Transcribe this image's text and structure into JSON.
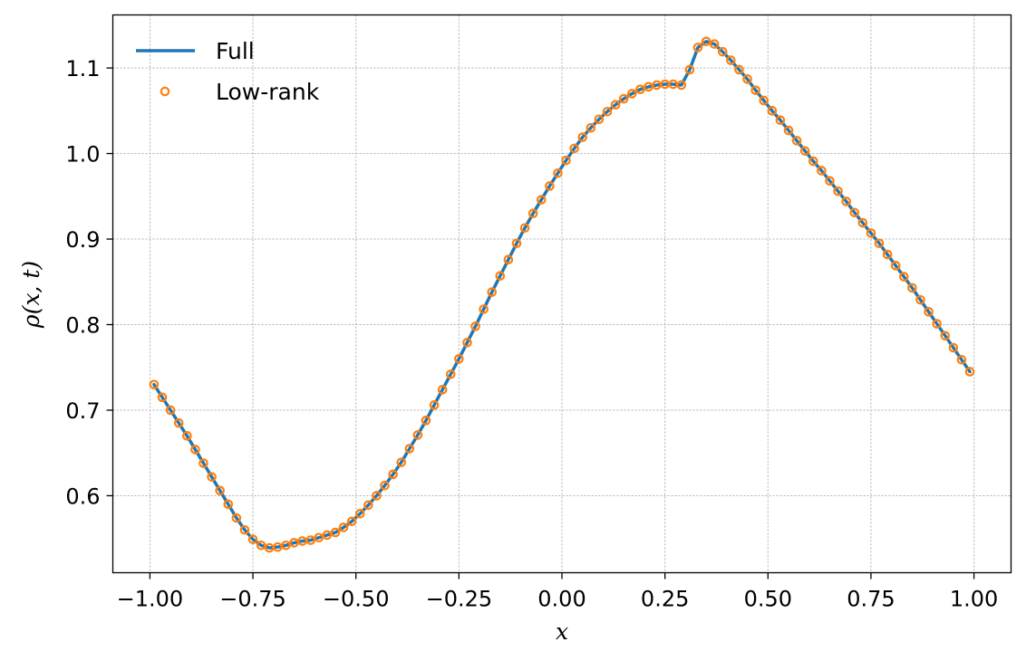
{
  "chart_data": {
    "type": "line",
    "title": "",
    "xlabel": "x",
    "ylabel": "ρ(x, t)",
    "xlim": [
      -1.09,
      1.09
    ],
    "ylim": [
      0.51,
      1.162
    ],
    "xticks": [
      -1.0,
      -0.75,
      -0.5,
      -0.25,
      0.0,
      0.25,
      0.5,
      0.75,
      1.0
    ],
    "xtick_labels": [
      "−1.00",
      "−0.75",
      "−0.50",
      "−0.25",
      "0.00",
      "0.25",
      "0.50",
      "0.75",
      "1.00"
    ],
    "yticks": [
      0.6,
      0.7,
      0.8,
      0.9,
      1.0,
      1.1
    ],
    "ytick_labels": [
      "0.6",
      "0.7",
      "0.8",
      "0.9",
      "1.0",
      "1.1"
    ],
    "grid": true,
    "legend_position": "top-left",
    "colors": {
      "full": "#1f77b4",
      "lowrank": "#ff7f0e",
      "grid": "#b0b0b0"
    },
    "series": [
      {
        "name": "Full",
        "style": "line"
      },
      {
        "name": "Low-rank",
        "style": "markers"
      }
    ],
    "x": [
      -0.99,
      -0.97,
      -0.95,
      -0.93,
      -0.91,
      -0.89,
      -0.87,
      -0.85,
      -0.83,
      -0.81,
      -0.79,
      -0.77,
      -0.75,
      -0.73,
      -0.71,
      -0.69,
      -0.67,
      -0.65,
      -0.63,
      -0.61,
      -0.59,
      -0.57,
      -0.55,
      -0.53,
      -0.51,
      -0.49,
      -0.47,
      -0.45,
      -0.43,
      -0.41,
      -0.39,
      -0.37,
      -0.35,
      -0.33,
      -0.31,
      -0.29,
      -0.27,
      -0.25,
      -0.23,
      -0.21,
      -0.19,
      -0.17,
      -0.15,
      -0.13,
      -0.11,
      -0.09,
      -0.07,
      -0.05,
      -0.03,
      -0.01,
      0.01,
      0.03,
      0.05,
      0.07,
      0.09,
      0.11,
      0.13,
      0.15,
      0.17,
      0.19,
      0.21,
      0.23,
      0.25,
      0.27,
      0.29,
      0.31,
      0.33,
      0.35,
      0.37,
      0.39,
      0.41,
      0.43,
      0.45,
      0.47,
      0.49,
      0.51,
      0.53,
      0.55,
      0.57,
      0.59,
      0.61,
      0.63,
      0.65,
      0.67,
      0.69,
      0.71,
      0.73,
      0.75,
      0.77,
      0.79,
      0.81,
      0.83,
      0.85,
      0.87,
      0.89,
      0.91,
      0.93,
      0.95,
      0.97,
      0.99
    ],
    "y": [
      0.73,
      0.715,
      0.7,
      0.685,
      0.67,
      0.654,
      0.638,
      0.622,
      0.606,
      0.59,
      0.574,
      0.56,
      0.549,
      0.542,
      0.539,
      0.54,
      0.542,
      0.545,
      0.547,
      0.548,
      0.551,
      0.554,
      0.557,
      0.563,
      0.57,
      0.579,
      0.589,
      0.6,
      0.612,
      0.625,
      0.639,
      0.655,
      0.671,
      0.688,
      0.706,
      0.724,
      0.742,
      0.76,
      0.779,
      0.798,
      0.818,
      0.838,
      0.857,
      0.876,
      0.895,
      0.913,
      0.93,
      0.946,
      0.962,
      0.977,
      0.992,
      1.006,
      1.019,
      1.03,
      1.04,
      1.049,
      1.057,
      1.064,
      1.07,
      1.075,
      1.078,
      1.08,
      1.081,
      1.081,
      1.08,
      1.098,
      1.124,
      1.131,
      1.128,
      1.119,
      1.109,
      1.098,
      1.087,
      1.074,
      1.062,
      1.05,
      1.039,
      1.027,
      1.015,
      1.003,
      0.991,
      0.98,
      0.968,
      0.956,
      0.944,
      0.931,
      0.919,
      0.907,
      0.895,
      0.882,
      0.869,
      0.856,
      0.843,
      0.829,
      0.815,
      0.801,
      0.787,
      0.773,
      0.759,
      0.745
    ]
  }
}
